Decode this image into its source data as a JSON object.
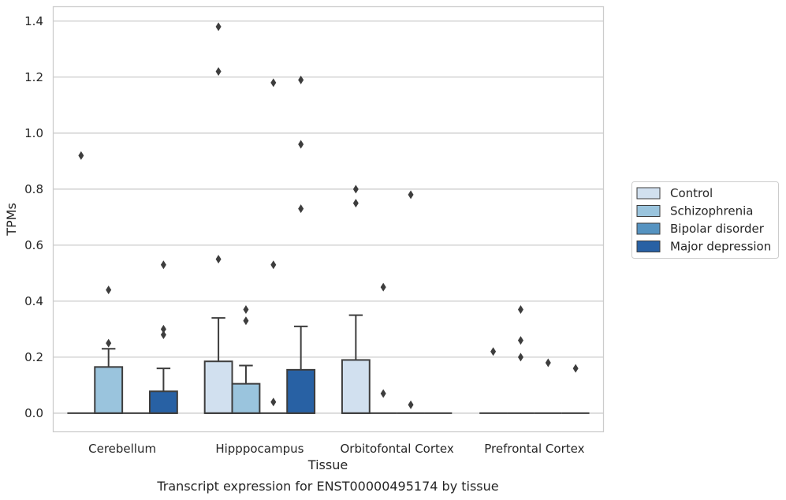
{
  "chart_data": {
    "type": "box",
    "title": "",
    "caption": "Transcript expression for ENST00000495174 by tissue",
    "xlabel": "Tissue",
    "ylabel": "TPMs",
    "ylim": [
      -0.065,
      1.45
    ],
    "yticks": [
      0.0,
      0.2,
      0.4,
      0.6,
      0.8,
      1.0,
      1.2,
      1.4
    ],
    "ytick_labels": [
      "0.0",
      "0.2",
      "0.4",
      "0.6",
      "0.8",
      "1.0",
      "1.2",
      "1.4"
    ],
    "grid": "horizontal",
    "legend_placement": "center-right outside",
    "categories": [
      "Cerebellum",
      "Hipppocampus",
      "Orbitofontal Cortex",
      "Prefrontal Cortex"
    ],
    "series": [
      {
        "name": "Control",
        "color": "#d1e0ef",
        "boxes": [
          {
            "q1": 0,
            "median": 0,
            "q3": 0,
            "whisker_low": 0,
            "whisker_high": 0,
            "outliers": [
              0.92
            ]
          },
          {
            "q1": 0,
            "median": 0,
            "q3": 0.185,
            "whisker_low": 0,
            "whisker_high": 0.34,
            "outliers": [
              0.55,
              1.22,
              1.38
            ]
          },
          {
            "q1": 0,
            "median": 0,
            "q3": 0.19,
            "whisker_low": 0,
            "whisker_high": 0.35,
            "outliers": [
              0.75,
              0.8
            ]
          },
          {
            "q1": 0,
            "median": 0,
            "q3": 0,
            "whisker_low": 0,
            "whisker_high": 0,
            "outliers": [
              0.22
            ]
          }
        ]
      },
      {
        "name": "Schizophrenia",
        "color": "#9ac4dd",
        "boxes": [
          {
            "q1": 0,
            "median": 0,
            "q3": 0.165,
            "whisker_low": 0,
            "whisker_high": 0.23,
            "outliers": [
              0.25,
              0.44
            ]
          },
          {
            "q1": 0,
            "median": 0,
            "q3": 0.105,
            "whisker_low": 0,
            "whisker_high": 0.17,
            "outliers": [
              0.33,
              0.37
            ]
          },
          {
            "q1": 0,
            "median": 0,
            "q3": 0,
            "whisker_low": 0,
            "whisker_high": 0,
            "outliers": [
              0.07,
              0.45
            ]
          },
          {
            "q1": 0,
            "median": 0,
            "q3": 0,
            "whisker_low": 0,
            "whisker_high": 0,
            "outliers": [
              0.2,
              0.26,
              0.37
            ]
          }
        ]
      },
      {
        "name": "Bipolar disorder",
        "color": "#5593c1",
        "boxes": [
          {
            "q1": 0,
            "median": 0,
            "q3": 0,
            "whisker_low": 0,
            "whisker_high": 0,
            "outliers": []
          },
          {
            "q1": 0,
            "median": 0,
            "q3": 0,
            "whisker_low": 0,
            "whisker_high": 0,
            "outliers": [
              0.04,
              0.53,
              1.18
            ]
          },
          {
            "q1": 0,
            "median": 0,
            "q3": 0,
            "whisker_low": 0,
            "whisker_high": 0,
            "outliers": [
              0.03,
              0.78
            ]
          },
          {
            "q1": 0,
            "median": 0,
            "q3": 0,
            "whisker_low": 0,
            "whisker_high": 0,
            "outliers": [
              0.18
            ]
          }
        ]
      },
      {
        "name": "Major depression",
        "color": "#2861a4",
        "boxes": [
          {
            "q1": 0,
            "median": 0,
            "q3": 0.078,
            "whisker_low": 0,
            "whisker_high": 0.16,
            "outliers": [
              0.28,
              0.3,
              0.53
            ]
          },
          {
            "q1": 0,
            "median": 0,
            "q3": 0.155,
            "whisker_low": 0,
            "whisker_high": 0.31,
            "outliers": [
              0.73,
              0.96,
              1.19
            ]
          },
          {
            "q1": 0,
            "median": 0,
            "q3": 0,
            "whisker_low": 0,
            "whisker_high": 0,
            "outliers": []
          },
          {
            "q1": 0,
            "median": 0,
            "q3": 0,
            "whisker_low": 0,
            "whisker_high": 0,
            "outliers": [
              0.16
            ]
          }
        ]
      }
    ]
  }
}
